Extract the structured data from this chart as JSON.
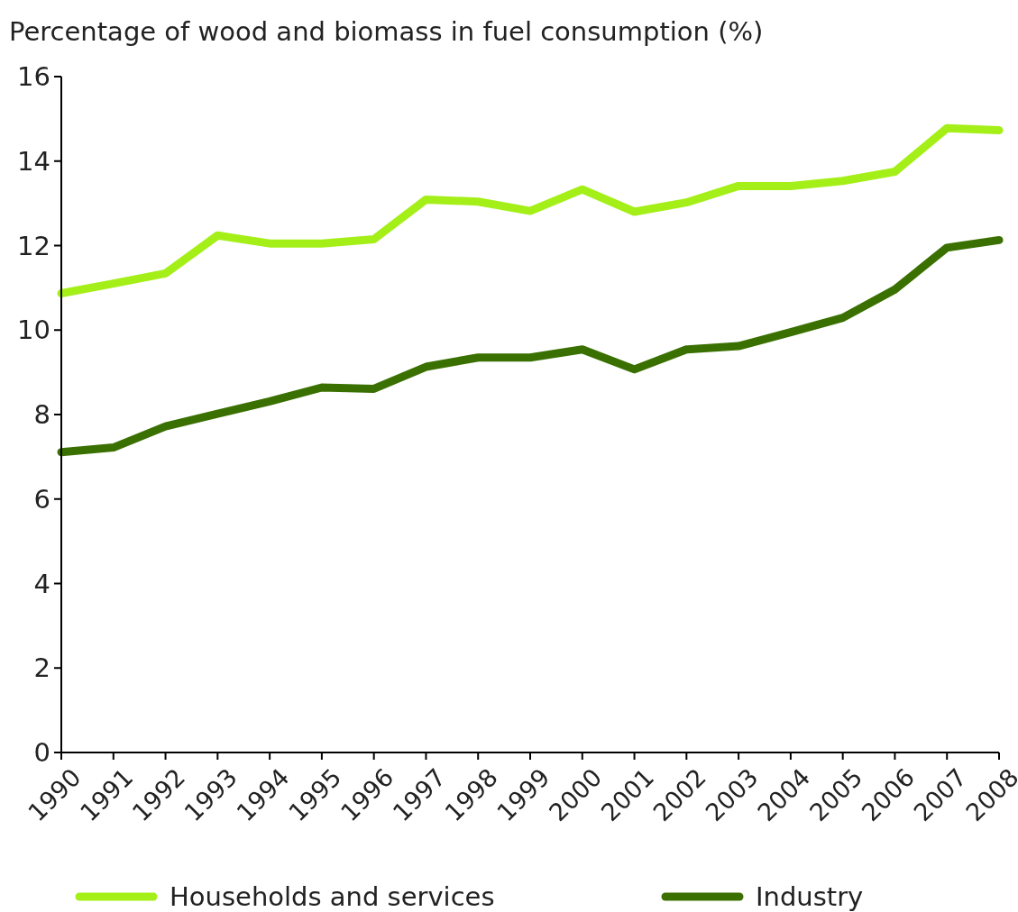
{
  "chart_data": {
    "type": "line",
    "title": "Percentage of wood and biomass in fuel consumption (%)",
    "categories": [
      "1990",
      "1991",
      "1992",
      "1993",
      "1994",
      "1995",
      "1996",
      "1997",
      "1998",
      "1999",
      "2000",
      "2001",
      "2002",
      "2003",
      "2004",
      "2005",
      "2006",
      "2007",
      "2008"
    ],
    "series": [
      {
        "name": "Households and services",
        "color": "#a4ef18",
        "values": [
          10.87,
          11.1,
          11.34,
          12.24,
          12.05,
          12.05,
          12.15,
          13.09,
          13.04,
          12.82,
          13.33,
          12.8,
          13.02,
          13.41,
          13.41,
          13.53,
          13.75,
          14.78,
          14.73
        ]
      },
      {
        "name": "Industry",
        "color": "#3a7000",
        "values": [
          7.11,
          7.22,
          7.72,
          8.02,
          8.31,
          8.64,
          8.61,
          9.13,
          9.35,
          9.35,
          9.54,
          9.07,
          9.54,
          9.62,
          9.95,
          10.29,
          10.96,
          11.95,
          12.13
        ]
      }
    ],
    "ylim": [
      0,
      16
    ],
    "yticks": [
      0,
      2,
      4,
      6,
      8,
      10,
      12,
      14,
      16
    ],
    "grid": false,
    "legend": "bottom",
    "marker": "none",
    "line_style": "solid"
  }
}
